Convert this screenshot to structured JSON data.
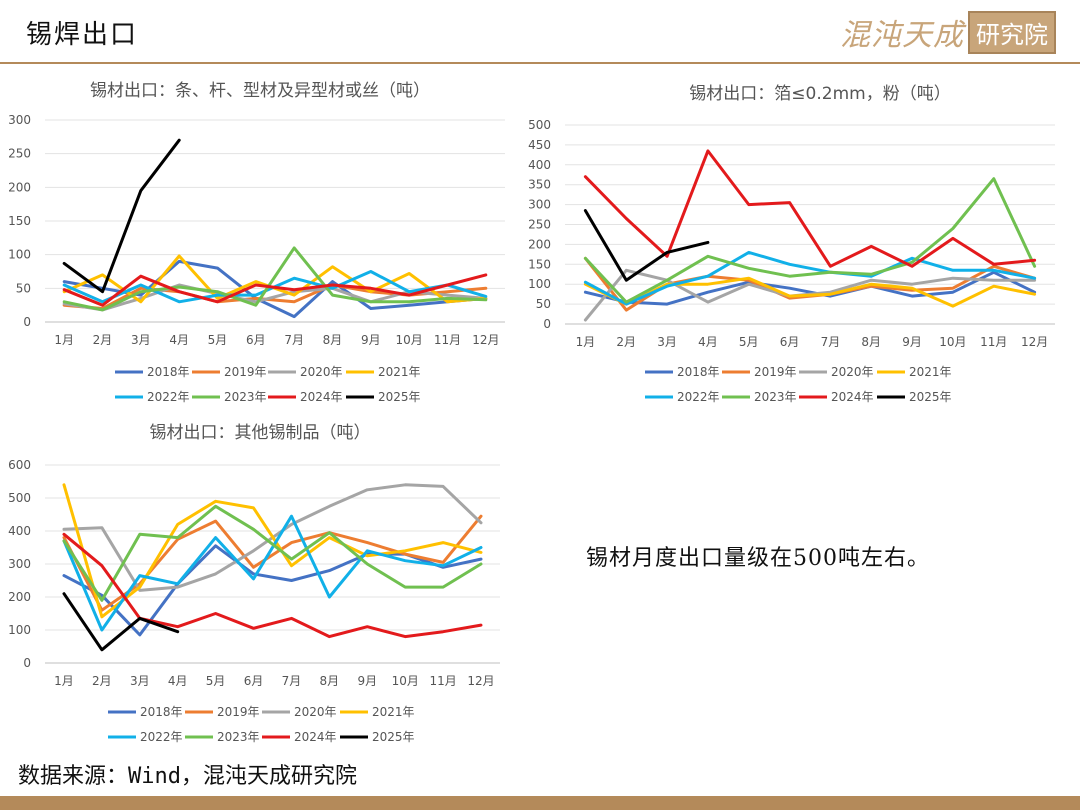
{
  "header": {
    "title": "锡焊出口"
  },
  "logo": {
    "script": "混沌天成",
    "box": "研究院"
  },
  "note": "锡材月度出口量级在500吨左右。",
  "source": "数据来源：Wind，混沌天成研究院",
  "colors": {
    "2018年": "#4472c4",
    "2019年": "#ed7d31",
    "2020年": "#a5a5a5",
    "2021年": "#ffc000",
    "2022年": "#11b0e8",
    "2023年": "#70c050",
    "2024年": "#e31a1c",
    "2025年": "#000000"
  },
  "chart_data": [
    {
      "type": "line",
      "title": "锡材出口：条、杆、型材及异型材或丝（吨）",
      "categories": [
        "1月",
        "2月",
        "3月",
        "4月",
        "5月",
        "6月",
        "7月",
        "8月",
        "9月",
        "10月",
        "11月",
        "12月"
      ],
      "ylim": [
        0,
        300
      ],
      "yticks": [
        0,
        50,
        100,
        150,
        200,
        250,
        300
      ],
      "grid": true,
      "legend": "bottom",
      "series": [
        {
          "name": "2018年",
          "values": [
            60,
            50,
            40,
            90,
            80,
            35,
            8,
            60,
            20,
            25,
            30,
            35
          ]
        },
        {
          "name": "2019年",
          "values": [
            25,
            20,
            50,
            45,
            30,
            35,
            30,
            55,
            45,
            40,
            45,
            50
          ]
        },
        {
          "name": "2020年",
          "values": [
            27,
            18,
            35,
            55,
            42,
            30,
            45,
            50,
            30,
            45,
            40,
            35
          ]
        },
        {
          "name": "2021年",
          "values": [
            45,
            70,
            30,
            98,
            35,
            60,
            40,
            82,
            45,
            72,
            30,
            35
          ]
        },
        {
          "name": "2022年",
          "values": [
            55,
            30,
            55,
            30,
            40,
            40,
            65,
            50,
            75,
            45,
            55,
            38
          ]
        },
        {
          "name": "2023年",
          "values": [
            30,
            18,
            45,
            52,
            45,
            25,
            110,
            40,
            30,
            30,
            35,
            33
          ]
        },
        {
          "name": "2024年",
          "values": [
            48,
            25,
            68,
            45,
            30,
            55,
            48,
            55,
            50,
            40,
            55,
            70
          ]
        },
        {
          "name": "2025年",
          "values": [
            87,
            45,
            195,
            270,
            null,
            null,
            null,
            null,
            null,
            null,
            null,
            null
          ]
        }
      ]
    },
    {
      "type": "line",
      "title": "锡材出口：箔≤0.2mm，粉（吨）",
      "categories": [
        "1月",
        "2月",
        "3月",
        "4月",
        "5月",
        "6月",
        "7月",
        "8月",
        "9月",
        "10月",
        "11月",
        "12月"
      ],
      "ylim": [
        0,
        500
      ],
      "yticks": [
        0,
        50,
        100,
        150,
        200,
        250,
        300,
        350,
        400,
        450,
        500
      ],
      "grid": true,
      "legend": "bottom",
      "series": [
        {
          "name": "2018年",
          "values": [
            80,
            55,
            50,
            80,
            105,
            90,
            70,
            95,
            70,
            80,
            130,
            80
          ]
        },
        {
          "name": "2019年",
          "values": [
            165,
            35,
            100,
            120,
            110,
            65,
            75,
            95,
            85,
            90,
            145,
            115
          ]
        },
        {
          "name": "2020年",
          "values": [
            10,
            135,
            110,
            55,
            100,
            70,
            80,
            110,
            100,
            115,
            110,
            110
          ]
        },
        {
          "name": "2021年",
          "values": [
            100,
            50,
            100,
            100,
            115,
            70,
            75,
            100,
            90,
            45,
            95,
            75
          ]
        },
        {
          "name": "2022年",
          "values": [
            105,
            50,
            95,
            120,
            180,
            150,
            130,
            120,
            165,
            135,
            135,
            115
          ]
        },
        {
          "name": "2023年",
          "values": [
            165,
            55,
            110,
            170,
            140,
            120,
            130,
            125,
            155,
            240,
            365,
            145
          ]
        },
        {
          "name": "2024年",
          "values": [
            370,
            265,
            170,
            435,
            300,
            305,
            145,
            195,
            145,
            215,
            150,
            160
          ]
        },
        {
          "name": "2025年",
          "values": [
            285,
            110,
            180,
            205,
            null,
            null,
            null,
            null,
            null,
            null,
            null,
            null
          ]
        }
      ]
    },
    {
      "type": "line",
      "title": "锡材出口：其他锡制品（吨）",
      "categories": [
        "1月",
        "2月",
        "3月",
        "4月",
        "5月",
        "6月",
        "7月",
        "8月",
        "9月",
        "10月",
        "11月",
        "12月"
      ],
      "ylim": [
        0,
        600
      ],
      "yticks": [
        0,
        100,
        200,
        300,
        400,
        500,
        600
      ],
      "grid": true,
      "legend": "bottom",
      "series": [
        {
          "name": "2018年",
          "values": [
            265,
            205,
            85,
            240,
            355,
            270,
            250,
            280,
            330,
            330,
            290,
            315
          ]
        },
        {
          "name": "2019年",
          "values": [
            380,
            160,
            240,
            375,
            430,
            290,
            365,
            395,
            365,
            330,
            305,
            445
          ]
        },
        {
          "name": "2020年",
          "values": [
            405,
            410,
            220,
            230,
            270,
            340,
            420,
            475,
            525,
            540,
            535,
            425
          ]
        },
        {
          "name": "2021年",
          "values": [
            540,
            140,
            230,
            420,
            490,
            470,
            295,
            380,
            325,
            340,
            365,
            335
          ]
        },
        {
          "name": "2022年",
          "values": [
            370,
            100,
            265,
            240,
            380,
            255,
            445,
            200,
            340,
            310,
            295,
            350
          ]
        },
        {
          "name": "2023年",
          "values": [
            370,
            190,
            390,
            380,
            475,
            405,
            315,
            395,
            300,
            230,
            230,
            300
          ]
        },
        {
          "name": "2024年",
          "values": [
            390,
            295,
            135,
            110,
            150,
            105,
            135,
            80,
            110,
            80,
            95,
            115
          ]
        },
        {
          "name": "2025年",
          "values": [
            210,
            40,
            135,
            95,
            null,
            null,
            null,
            null,
            null,
            null,
            null,
            null
          ]
        }
      ]
    }
  ]
}
